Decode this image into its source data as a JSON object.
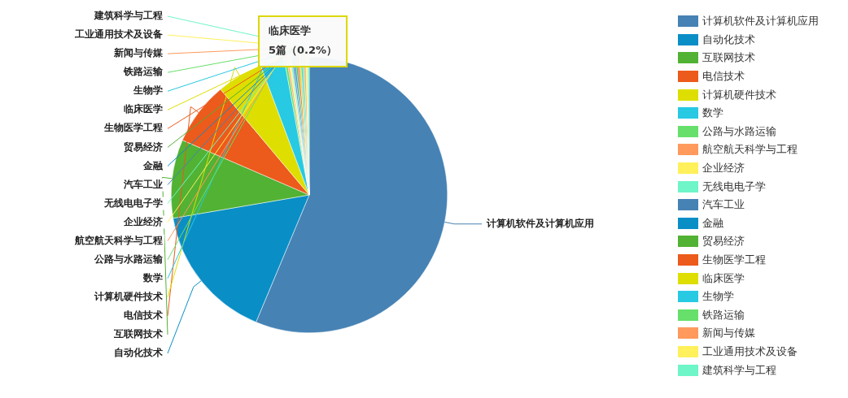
{
  "chart_data": {
    "type": "pie",
    "categories": [
      "计算机软件及计算机应用",
      "自动化技术",
      "互联网技术",
      "电信技术",
      "计算机硬件技术",
      "数学",
      "公路与水路运输",
      "航空航天科学与工程",
      "企业经济",
      "无线电电子学",
      "汽车工业",
      "金融",
      "贸易经济",
      "生物医学工程",
      "临床医学",
      "生物学",
      "铁路运输",
      "新闻与传媒",
      "工业通用技术及设备",
      "建筑科学与工程"
    ],
    "values": [
      56.3,
      16,
      9.2,
      7.4,
      5.4,
      2.8,
      0.3,
      0.2,
      0.2,
      0.2,
      0.2,
      0.2,
      0.2,
      0.2,
      0.2,
      0.2,
      0.2,
      0.2,
      0.2,
      0.2
    ],
    "colors": [
      "#4682b4",
      "#0a8ec6",
      "#52b233",
      "#ec5a1c",
      "#dede00",
      "#27c9e3",
      "#66e06a",
      "#ff9a5c",
      "#fff05c",
      "#6ef5c8",
      "#4682b4",
      "#0a8ec6",
      "#52b233",
      "#ec5a1c",
      "#dede00",
      "#27c9e3",
      "#66e06a",
      "#ff9a5c",
      "#fff05c",
      "#6ef5c8"
    ],
    "legend": "right",
    "annotations": [
      "临床医学\n5篇（0.2%）"
    ]
  }
}
